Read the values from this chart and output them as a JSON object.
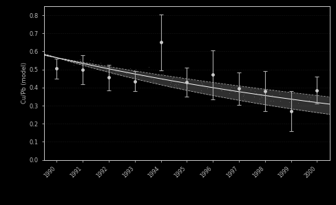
{
  "years": [
    1990,
    1991,
    1992,
    1993,
    1994,
    1995,
    1996,
    1997,
    1998,
    1999,
    2000
  ],
  "ratios": [
    0.505,
    0.5,
    0.455,
    0.435,
    0.65,
    0.43,
    0.47,
    0.395,
    0.38,
    0.27,
    0.385
  ],
  "errors": [
    0.055,
    0.08,
    0.07,
    0.055,
    0.155,
    0.08,
    0.135,
    0.09,
    0.11,
    0.11,
    0.075
  ],
  "ylabel": "Cu/Pb (model)",
  "ylim": [
    0,
    0.85
  ],
  "yticks": [
    0,
    0.1,
    0.2,
    0.3,
    0.4,
    0.5,
    0.6,
    0.7,
    0.8
  ],
  "xlim": [
    1989.5,
    2000.5
  ],
  "half_life": 12,
  "half_life_err": 3,
  "A0": 0.565,
  "t0": 1990,
  "background_color": "#000000",
  "spine_color": "#cccccc",
  "fit_center_color": "#ffffff",
  "fit_band_color": "#888888",
  "fit_edge_color": "#aaaaaa",
  "marker_color": "#cccccc",
  "error_color": "#aaaaaa",
  "tick_color": "#bbbbbb",
  "label_color": "#bbbbbb",
  "scatter_dot_color": "#999999"
}
